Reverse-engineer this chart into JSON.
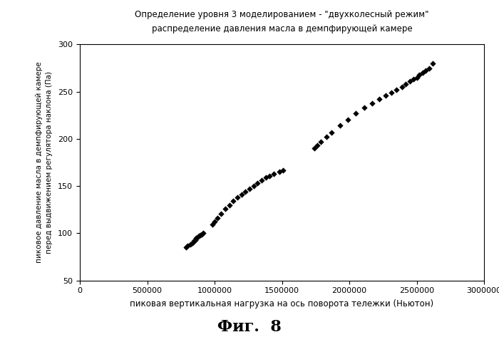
{
  "title_line1": "Определение уровня 3 моделированием - \"двухколесный режим\"",
  "title_line2": "распределение давления масла в демпфирующей камере",
  "xlabel": "пиковая вертикальная нагрузка на ось поворота тележки (Ньютон)",
  "ylabel_lines": [
    "пиковое давление масла в демпфирующей камере",
    "перед выдвижением регулятора наклона (Па)"
  ],
  "caption": "Фиг.  8",
  "xlim": [
    0,
    3000000
  ],
  "ylim": [
    50,
    300
  ],
  "xticks": [
    0,
    500000,
    1000000,
    1500000,
    2000000,
    2500000,
    3000000
  ],
  "yticks": [
    50,
    100,
    150,
    200,
    250,
    300
  ],
  "cluster1_x": [
    790000,
    800000,
    820000,
    835000,
    845000,
    855000,
    865000,
    875000,
    885000,
    895000,
    905000,
    915000
  ],
  "cluster1_y": [
    85,
    87,
    88,
    90,
    92,
    93,
    95,
    96,
    97,
    98,
    99,
    100
  ],
  "cluster2_x": [
    985000,
    1000000,
    1020000,
    1050000,
    1080000,
    1110000,
    1140000,
    1170000,
    1200000,
    1230000,
    1260000,
    1290000,
    1320000,
    1350000,
    1380000,
    1410000,
    1440000,
    1480000,
    1510000
  ],
  "cluster2_y": [
    109,
    112,
    116,
    121,
    126,
    130,
    134,
    138,
    141,
    144,
    147,
    150,
    153,
    156,
    159,
    161,
    163,
    165,
    167
  ],
  "cluster3_x": [
    1740000,
    1760000,
    1790000,
    1830000,
    1870000,
    1930000,
    1990000,
    2050000,
    2110000,
    2170000,
    2220000,
    2270000,
    2310000,
    2350000,
    2390000,
    2420000,
    2450000,
    2475000,
    2500000,
    2520000,
    2545000,
    2565000,
    2590000,
    2620000
  ],
  "cluster3_y": [
    190,
    193,
    197,
    202,
    207,
    214,
    220,
    227,
    233,
    238,
    242,
    246,
    249,
    252,
    255,
    258,
    261,
    263,
    265,
    268,
    270,
    272,
    275,
    280
  ],
  "marker_color": "#000000",
  "marker_size": 18,
  "bg_color": "#ffffff"
}
